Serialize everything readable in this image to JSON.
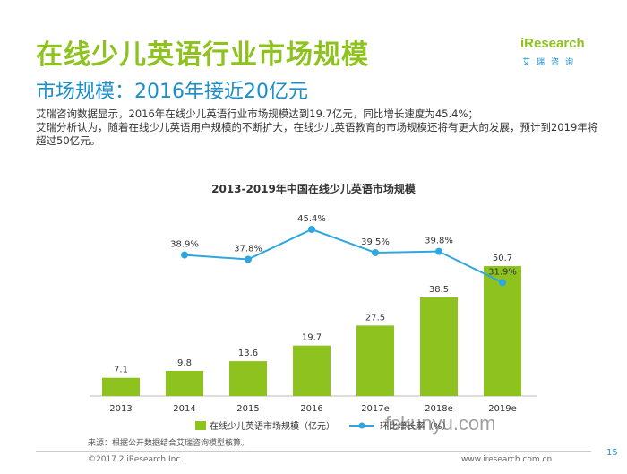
{
  "header": {
    "title": "在线少儿英语行业市场规模",
    "subtitle": "市场规模：2016年接近20亿元",
    "logo_text": "iResearch",
    "logo_sub": "艾瑞咨询"
  },
  "description": [
    "艾瑞咨询数据显示，2016年在线少儿英语行业市场规模达到19.7亿元，同比增长速度为45.4%；",
    "艾瑞分析认为，随着在线少儿英语用户规模的不断扩大，在线少儿英语教育的市场规模还将有更大的发展，预计到2019年将超过50亿元。"
  ],
  "chart_data": {
    "type": "bar",
    "title": "2013-2019年中国在线少儿英语市场规模",
    "categories": [
      "2013",
      "2014",
      "2015",
      "2016",
      "2017e",
      "2018e",
      "2019e"
    ],
    "series": [
      {
        "name": "在线少儿英语市场规模（亿元）",
        "type": "bar",
        "values": [
          7.1,
          9.8,
          13.6,
          19.7,
          27.5,
          38.5,
          50.7
        ],
        "labels": [
          "7.1",
          "9.8",
          "13.6",
          "19.7",
          "27.5",
          "38.5",
          "50.7"
        ],
        "color": "#8dc21f"
      },
      {
        "name": "环比增长率（%）",
        "type": "line",
        "x": [
          "2014",
          "2015",
          "2016",
          "2017e",
          "2018e",
          "2019e"
        ],
        "values": [
          38.9,
          37.8,
          45.4,
          39.5,
          39.8,
          31.9
        ],
        "labels": [
          "38.9%",
          "37.8%",
          "45.4%",
          "39.5%",
          "39.8%",
          "31.9%"
        ],
        "color": "#2ea7e0"
      }
    ],
    "legend_position": "bottom",
    "grid": false
  },
  "footer": {
    "source": "来源：根据公开数据结合艾瑞咨询模型核算。",
    "copyright": "©2017.2 iResearch Inc.",
    "website": "www.iresearch.com.cn",
    "page": "15"
  },
  "watermark": "fskunyu.com"
}
